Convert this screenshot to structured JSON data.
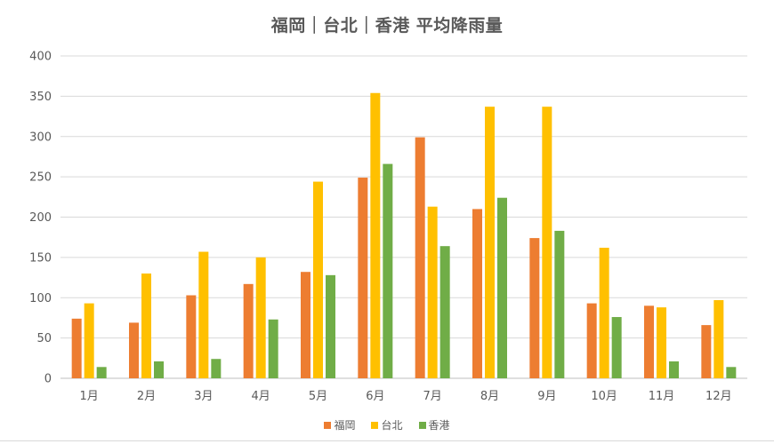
{
  "chart_data": {
    "type": "bar",
    "title": "福岡｜台北｜香港 平均降雨量",
    "categories": [
      "1月",
      "2月",
      "3月",
      "4月",
      "5月",
      "6月",
      "7月",
      "8月",
      "9月",
      "10月",
      "11月",
      "12月"
    ],
    "series": [
      {
        "name": "福岡",
        "color": "#ED7D31",
        "values": [
          74,
          69,
          103,
          117,
          132,
          249,
          299,
          210,
          174,
          93,
          90,
          66
        ]
      },
      {
        "name": "台北",
        "color": "#FFC000",
        "values": [
          93,
          130,
          157,
          150,
          244,
          354,
          213,
          337,
          337,
          162,
          88,
          97
        ]
      },
      {
        "name": "香港",
        "color": "#70AD47",
        "values": [
          14,
          21,
          24,
          73,
          128,
          266,
          164,
          224,
          183,
          76,
          21,
          14
        ]
      }
    ],
    "ylim": [
      0,
      400
    ],
    "yticks": [
      0,
      50,
      100,
      150,
      200,
      250,
      300,
      350,
      400
    ],
    "grid": true,
    "legend_position": "bottom"
  }
}
